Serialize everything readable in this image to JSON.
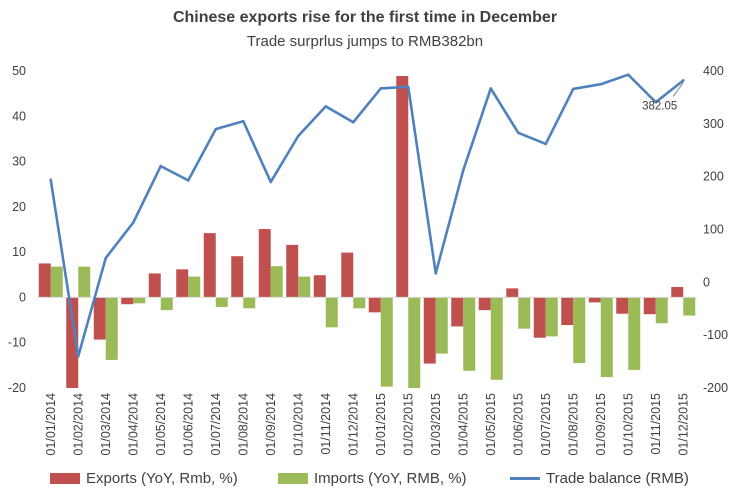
{
  "chart_data": {
    "type": "bar",
    "title": "Chinese exports rise for the first time in December",
    "subtitle": "Trade surprlus jumps to RMB382bn",
    "categories": [
      "01/01/2014",
      "01/02/2014",
      "01/03/2014",
      "01/04/2014",
      "01/05/2014",
      "01/06/2014",
      "01/07/2014",
      "01/08/2014",
      "01/09/2014",
      "01/10/2014",
      "01/11/2014",
      "01/12/2014",
      "01/01/2015",
      "01/02/2015",
      "01/03/2015",
      "01/04/2015",
      "01/05/2015",
      "01/06/2015",
      "01/07/2015",
      "01/08/2015",
      "01/09/2015",
      "01/10/2015",
      "01/11/2015",
      "01/12/2015"
    ],
    "series": [
      {
        "name": "Exports (YoY, Rmb, %)",
        "type": "bar",
        "axis": "left",
        "color": "#c0504d",
        "values": [
          7.5,
          -20.2,
          -9.3,
          -1.5,
          5.3,
          6.2,
          14.2,
          9.1,
          15.1,
          11.6,
          4.9,
          9.9,
          -3.3,
          48.9,
          -14.6,
          -6.4,
          -2.8,
          2.0,
          -8.9,
          -6.1,
          -1.1,
          -3.6,
          -3.7,
          2.3
        ]
      },
      {
        "name": "Imports (YoY, RMB, %)",
        "type": "bar",
        "axis": "left",
        "color": "#9bbb59",
        "values": [
          6.8,
          6.8,
          -13.8,
          -1.3,
          -2.8,
          4.6,
          -2.1,
          -2.4,
          6.9,
          4.6,
          -6.6,
          -2.4,
          -19.7,
          -20.5,
          -12.4,
          -16.2,
          -18.2,
          -6.9,
          -8.6,
          -14.5,
          -17.6,
          -16.0,
          -5.7,
          -4.0
        ]
      },
      {
        "name": "Trade balance (RMB)",
        "type": "line",
        "axis": "right",
        "color": "#4f81bd",
        "values": [
          194,
          -140,
          46,
          113,
          220,
          193,
          290,
          305,
          190,
          277,
          333,
          303,
          367,
          370,
          17,
          212,
          367,
          283,
          262,
          366,
          375,
          393,
          341,
          382.05
        ]
      }
    ],
    "ylim": [
      -20,
      50
    ],
    "yticks": [
      -20,
      -10,
      0,
      10,
      20,
      30,
      40,
      50
    ],
    "y2lim": [
      -200,
      400
    ],
    "y2ticks": [
      -200,
      -100,
      0,
      100,
      200,
      300,
      400
    ],
    "annotation": "382.05",
    "xlabel": "",
    "ylabel": "",
    "grid": false,
    "legend_position": "bottom"
  }
}
